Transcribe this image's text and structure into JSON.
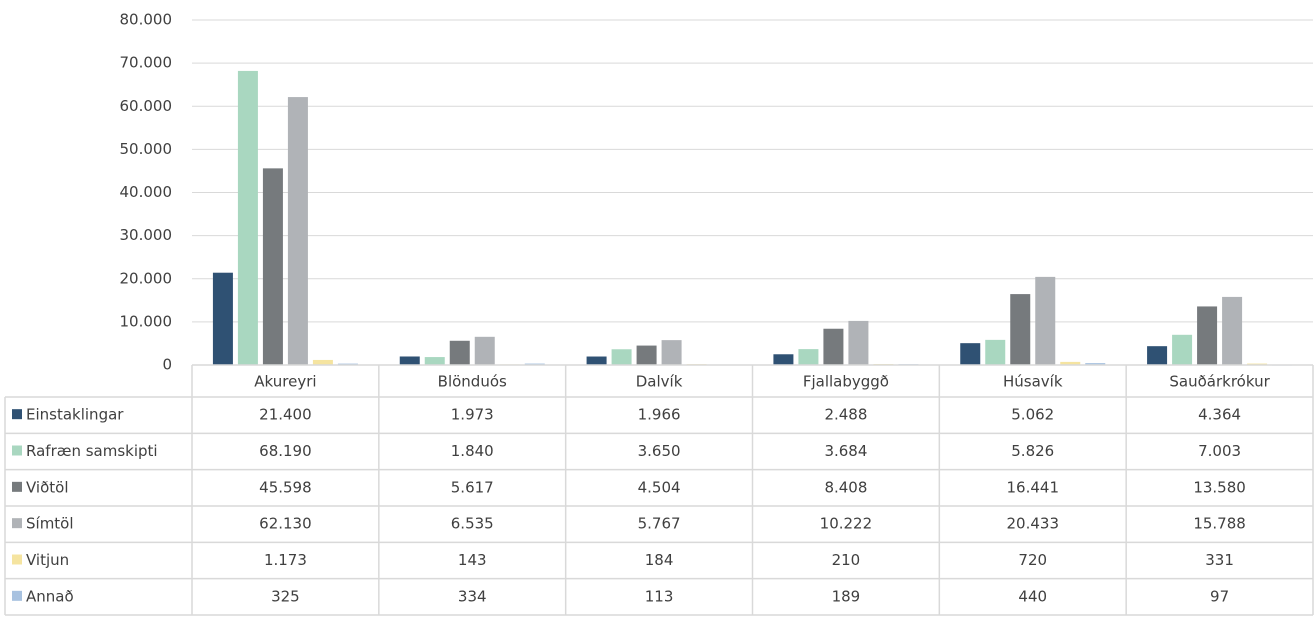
{
  "chart_data": {
    "type": "bar",
    "categories": [
      "Akureyri",
      "Blönduós",
      "Dalvík",
      "Fjallabyggð",
      "Húsavík",
      "Sauðárkrókur"
    ],
    "series": [
      {
        "name": "Einstaklingar",
        "color": "#2f5173",
        "values": [
          21400,
          1973,
          1966,
          2488,
          5062,
          4364
        ],
        "value_labels": [
          "21.400",
          "1.973",
          "1.966",
          "2.488",
          "5.062",
          "4.364"
        ]
      },
      {
        "name": "Rafræn samskipti",
        "color": "#a9d7c0",
        "values": [
          68190,
          1840,
          3650,
          3684,
          5826,
          7003
        ],
        "value_labels": [
          "68.190",
          "1.840",
          "3.650",
          "3.684",
          "5.826",
          "7.003"
        ]
      },
      {
        "name": "Viðtöl",
        "color": "#767a7d",
        "values": [
          45598,
          5617,
          4504,
          8408,
          16441,
          13580
        ],
        "value_labels": [
          "45.598",
          "5.617",
          "4.504",
          "8.408",
          "16.441",
          "13.580"
        ]
      },
      {
        "name": "Símtöl",
        "color": "#b0b3b7",
        "values": [
          62130,
          6535,
          5767,
          10222,
          20433,
          15788
        ],
        "value_labels": [
          "62.130",
          "6.535",
          "5.767",
          "10.222",
          "20.433",
          "15.788"
        ]
      },
      {
        "name": "Vitjun",
        "color": "#f5e4a0",
        "values": [
          1173,
          143,
          184,
          210,
          720,
          331
        ],
        "value_labels": [
          "1.173",
          "143",
          "184",
          "210",
          "720",
          "331"
        ]
      },
      {
        "name": "Annað",
        "color": "#a8c2e0",
        "values": [
          325,
          334,
          113,
          189,
          440,
          97
        ]
      }
    ],
    "ylim": [
      0,
      80000
    ],
    "yticks": [
      0,
      {
        "value": 10000,
        "label": "10.000"
      },
      {
        "value": 20000,
        "label": "20.000"
      },
      {
        "value": 30000,
        "label": "30.000"
      },
      {
        "value": 40000,
        "label": "40.000"
      },
      {
        "value": 50000,
        "label": "50.000"
      },
      {
        "value": 60000,
        "label": "60.000"
      },
      {
        "value": 70000,
        "label": "70.000"
      },
      {
        "value": 80000,
        "label": "80.000"
      }
    ],
    "grid": true
  }
}
